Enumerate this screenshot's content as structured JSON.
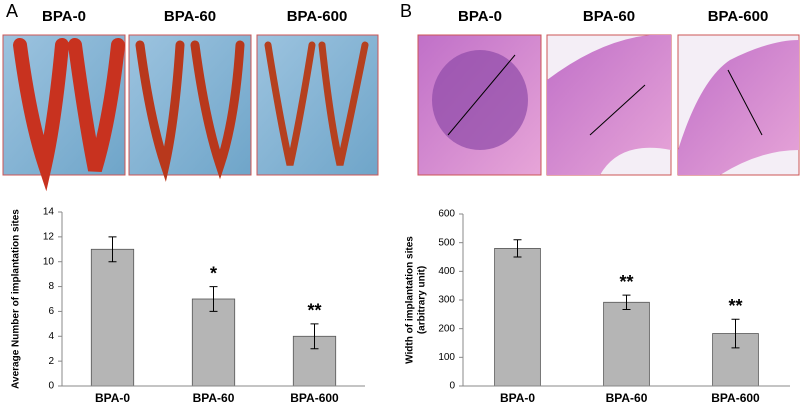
{
  "panels": [
    {
      "label": "A",
      "image_labels": [
        "BPA-0",
        "BPA-60",
        "BPA-600"
      ]
    },
    {
      "label": "B",
      "image_labels": [
        "BPA-0",
        "BPA-60",
        "BPA-600"
      ]
    }
  ],
  "chart_data": [
    {
      "type": "bar",
      "y_label": [
        "Average Number of implantation sites"
      ],
      "categories": [
        "BPA-0",
        "BPA-60",
        "BPA-600"
      ],
      "values": [
        11,
        7,
        4
      ],
      "errors": [
        1,
        1,
        1
      ],
      "significance": [
        null,
        "*",
        "**"
      ],
      "color": "#b5b5b5",
      "ylim": [
        0,
        14
      ],
      "yticks": [
        0,
        2,
        4,
        6,
        8,
        10,
        12,
        14
      ]
    },
    {
      "type": "bar",
      "y_label": [
        "Width of implantation sites",
        "(arbitrary unit)"
      ],
      "categories": [
        "BPA-0",
        "BPA-60",
        "BPA-600"
      ],
      "values": [
        480,
        292,
        183
      ],
      "errors": [
        30,
        25,
        50
      ],
      "significance": [
        null,
        "**",
        "**"
      ],
      "color": "#b5b5b5",
      "ylim": [
        0,
        600
      ],
      "yticks": [
        0,
        100,
        200,
        300,
        400,
        500,
        600
      ]
    }
  ]
}
